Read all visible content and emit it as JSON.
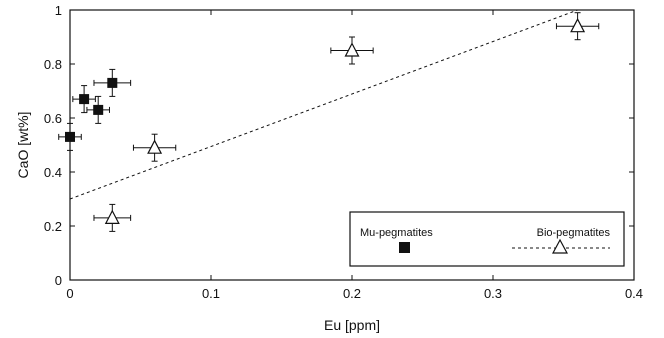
{
  "chart_data": {
    "type": "scatter",
    "xlabel": "Eu [ppm]",
    "ylabel": "CaO [wt%]",
    "xlim": [
      0,
      0.4
    ],
    "ylim": [
      0,
      1
    ],
    "x_ticks": [
      "0",
      "0.1",
      "0.2",
      "0.3",
      "0.4"
    ],
    "y_ticks": [
      "0",
      "0.2",
      "0.4",
      "0.6",
      "0.8",
      "1"
    ],
    "grid": false,
    "legend_position": "bottom-right",
    "series": [
      {
        "name": "Mu-pegmatites",
        "marker": "filled-square",
        "color": "#111111",
        "points": [
          {
            "x": 0.0,
            "y": 0.53,
            "xerr": 0.008,
            "yerr": 0.05
          },
          {
            "x": 0.01,
            "y": 0.67,
            "xerr": 0.008,
            "yerr": 0.05
          },
          {
            "x": 0.02,
            "y": 0.63,
            "xerr": 0.008,
            "yerr": 0.05
          },
          {
            "x": 0.03,
            "y": 0.73,
            "xerr": 0.013,
            "yerr": 0.05
          }
        ]
      },
      {
        "name": "Bio-pegmatites",
        "marker": "open-triangle",
        "color": "#111111",
        "points": [
          {
            "x": 0.03,
            "y": 0.23,
            "xerr": 0.013,
            "yerr": 0.05
          },
          {
            "x": 0.06,
            "y": 0.49,
            "xerr": 0.015,
            "yerr": 0.05
          },
          {
            "x": 0.2,
            "y": 0.85,
            "xerr": 0.015,
            "yerr": 0.05
          },
          {
            "x": 0.36,
            "y": 0.94,
            "xerr": 0.015,
            "yerr": 0.05
          }
        ]
      }
    ],
    "trend_line": {
      "style": "dashed",
      "x": [
        0,
        0.36
      ],
      "y": [
        0.3,
        1.0
      ]
    }
  }
}
